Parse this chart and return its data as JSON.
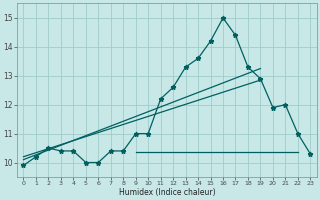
{
  "title": "",
  "xlabel": "Humidex (Indice chaleur)",
  "bg_color": "#c8e8e8",
  "grid_color": "#a0cccc",
  "line_color": "#006060",
  "xlim": [
    -0.5,
    23.5
  ],
  "ylim": [
    9.5,
    15.5
  ],
  "xticks": [
    0,
    1,
    2,
    3,
    4,
    5,
    6,
    7,
    8,
    9,
    10,
    11,
    12,
    13,
    14,
    15,
    16,
    17,
    18,
    19,
    20,
    21,
    22,
    23
  ],
  "yticks": [
    10,
    11,
    12,
    13,
    14,
    15
  ],
  "main_x": [
    0,
    1,
    2,
    3,
    4,
    5,
    6,
    7,
    8,
    9,
    10,
    11,
    12,
    13,
    14,
    15,
    16,
    17,
    18,
    19,
    20,
    21,
    22,
    23
  ],
  "main_y": [
    9.9,
    10.2,
    10.5,
    10.4,
    10.4,
    10.0,
    10.0,
    10.4,
    10.4,
    11.0,
    11.0,
    12.2,
    12.6,
    13.3,
    13.6,
    14.2,
    15.0,
    14.4,
    13.3,
    12.9,
    11.9,
    12.0,
    11.0,
    10.3
  ],
  "line1_x": [
    0,
    19
  ],
  "line1_y": [
    10.1,
    13.25
  ],
  "line2_x": [
    0,
    19
  ],
  "line2_y": [
    10.2,
    12.85
  ],
  "hline_y": 10.35,
  "hline_x_start": 9,
  "hline_x_end": 22
}
